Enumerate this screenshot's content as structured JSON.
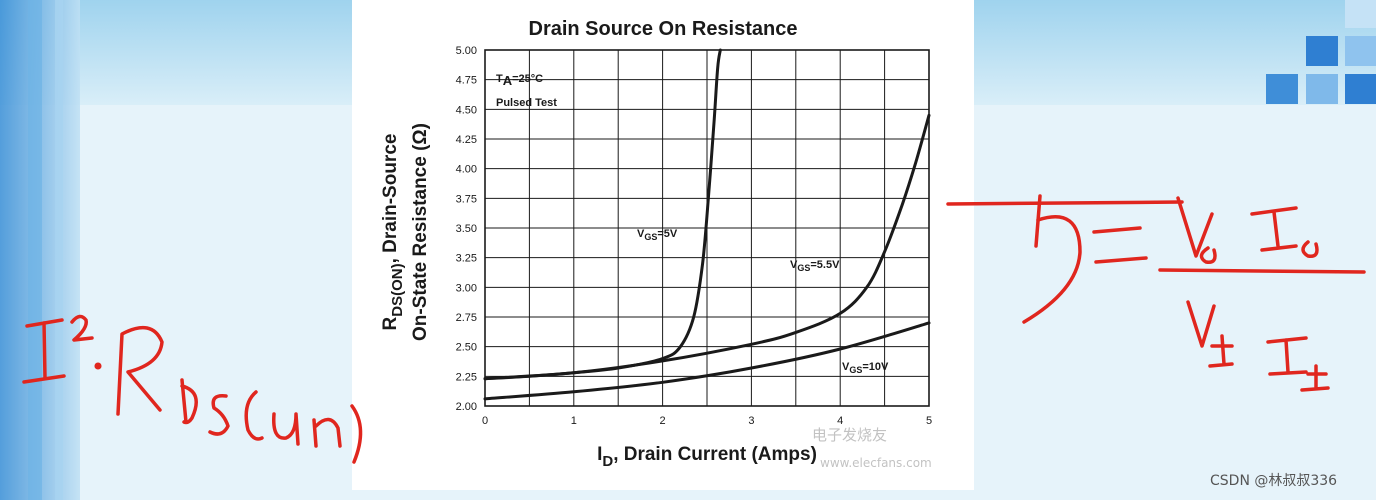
{
  "chart_data": {
    "type": "line",
    "title": "Drain Source On Resistance",
    "ylabel_line1": "R",
    "ylabel_line1_sub": "DS(ON)",
    "ylabel_line1_rest": ", Drain-Source",
    "ylabel_line2": "On-State Resistance (Ω)",
    "xlabel_main": "I",
    "xlabel_sub": "D",
    "xlabel_rest": ", Drain Current (Amps)",
    "xlim": [
      0,
      5
    ],
    "ylim": [
      2.0,
      5.0
    ],
    "x_ticks": [
      "0",
      "1",
      "2",
      "3",
      "4",
      "5"
    ],
    "y_ticks": [
      "2.00",
      "2.25",
      "2.50",
      "2.75",
      "3.00",
      "3.25",
      "3.50",
      "3.75",
      "4.00",
      "4.25",
      "4.50",
      "4.75",
      "5.00"
    ],
    "grid": true,
    "conditions": {
      "ta_main": "T",
      "ta_sub": "A",
      "ta_rest": "=25°C",
      "pulsed": "Pulsed Test"
    },
    "series": [
      {
        "name": "V_GS=5V",
        "label_main": "V",
        "label_sub": "GS",
        "label_rest": "=5V",
        "x": [
          0,
          0.5,
          1.0,
          1.5,
          2.0,
          2.2,
          2.35,
          2.45,
          2.52,
          2.58,
          2.62,
          2.65
        ],
        "y": [
          2.23,
          2.25,
          2.28,
          2.32,
          2.4,
          2.5,
          2.75,
          3.2,
          3.8,
          4.4,
          4.85,
          5.0
        ]
      },
      {
        "name": "V_GS=5.5V",
        "label_main": "V",
        "label_sub": "GS",
        "label_rest": "=5.5V",
        "x": [
          0,
          1.0,
          2.0,
          3.0,
          3.5,
          4.0,
          4.3,
          4.5,
          4.7,
          4.85,
          5.0
        ],
        "y": [
          2.23,
          2.28,
          2.38,
          2.52,
          2.62,
          2.78,
          3.0,
          3.3,
          3.7,
          4.05,
          4.45
        ]
      },
      {
        "name": "V_GS=10V",
        "label_main": "V",
        "label_sub": "GS",
        "label_rest": "=10V",
        "x": [
          0,
          1.0,
          2.0,
          3.0,
          4.0,
          5.0
        ],
        "y": [
          2.06,
          2.12,
          2.2,
          2.32,
          2.48,
          2.7
        ]
      }
    ]
  },
  "watermarks": {
    "csdn": "CSDN @林叔叔336",
    "elecfans": "电子发烧友",
    "elecfans_url": "www.elecfans.com"
  },
  "colors": {
    "ink_red": "#e0261e",
    "curve": "#1a1a1a",
    "slide_blue": "#2f7fd2"
  }
}
